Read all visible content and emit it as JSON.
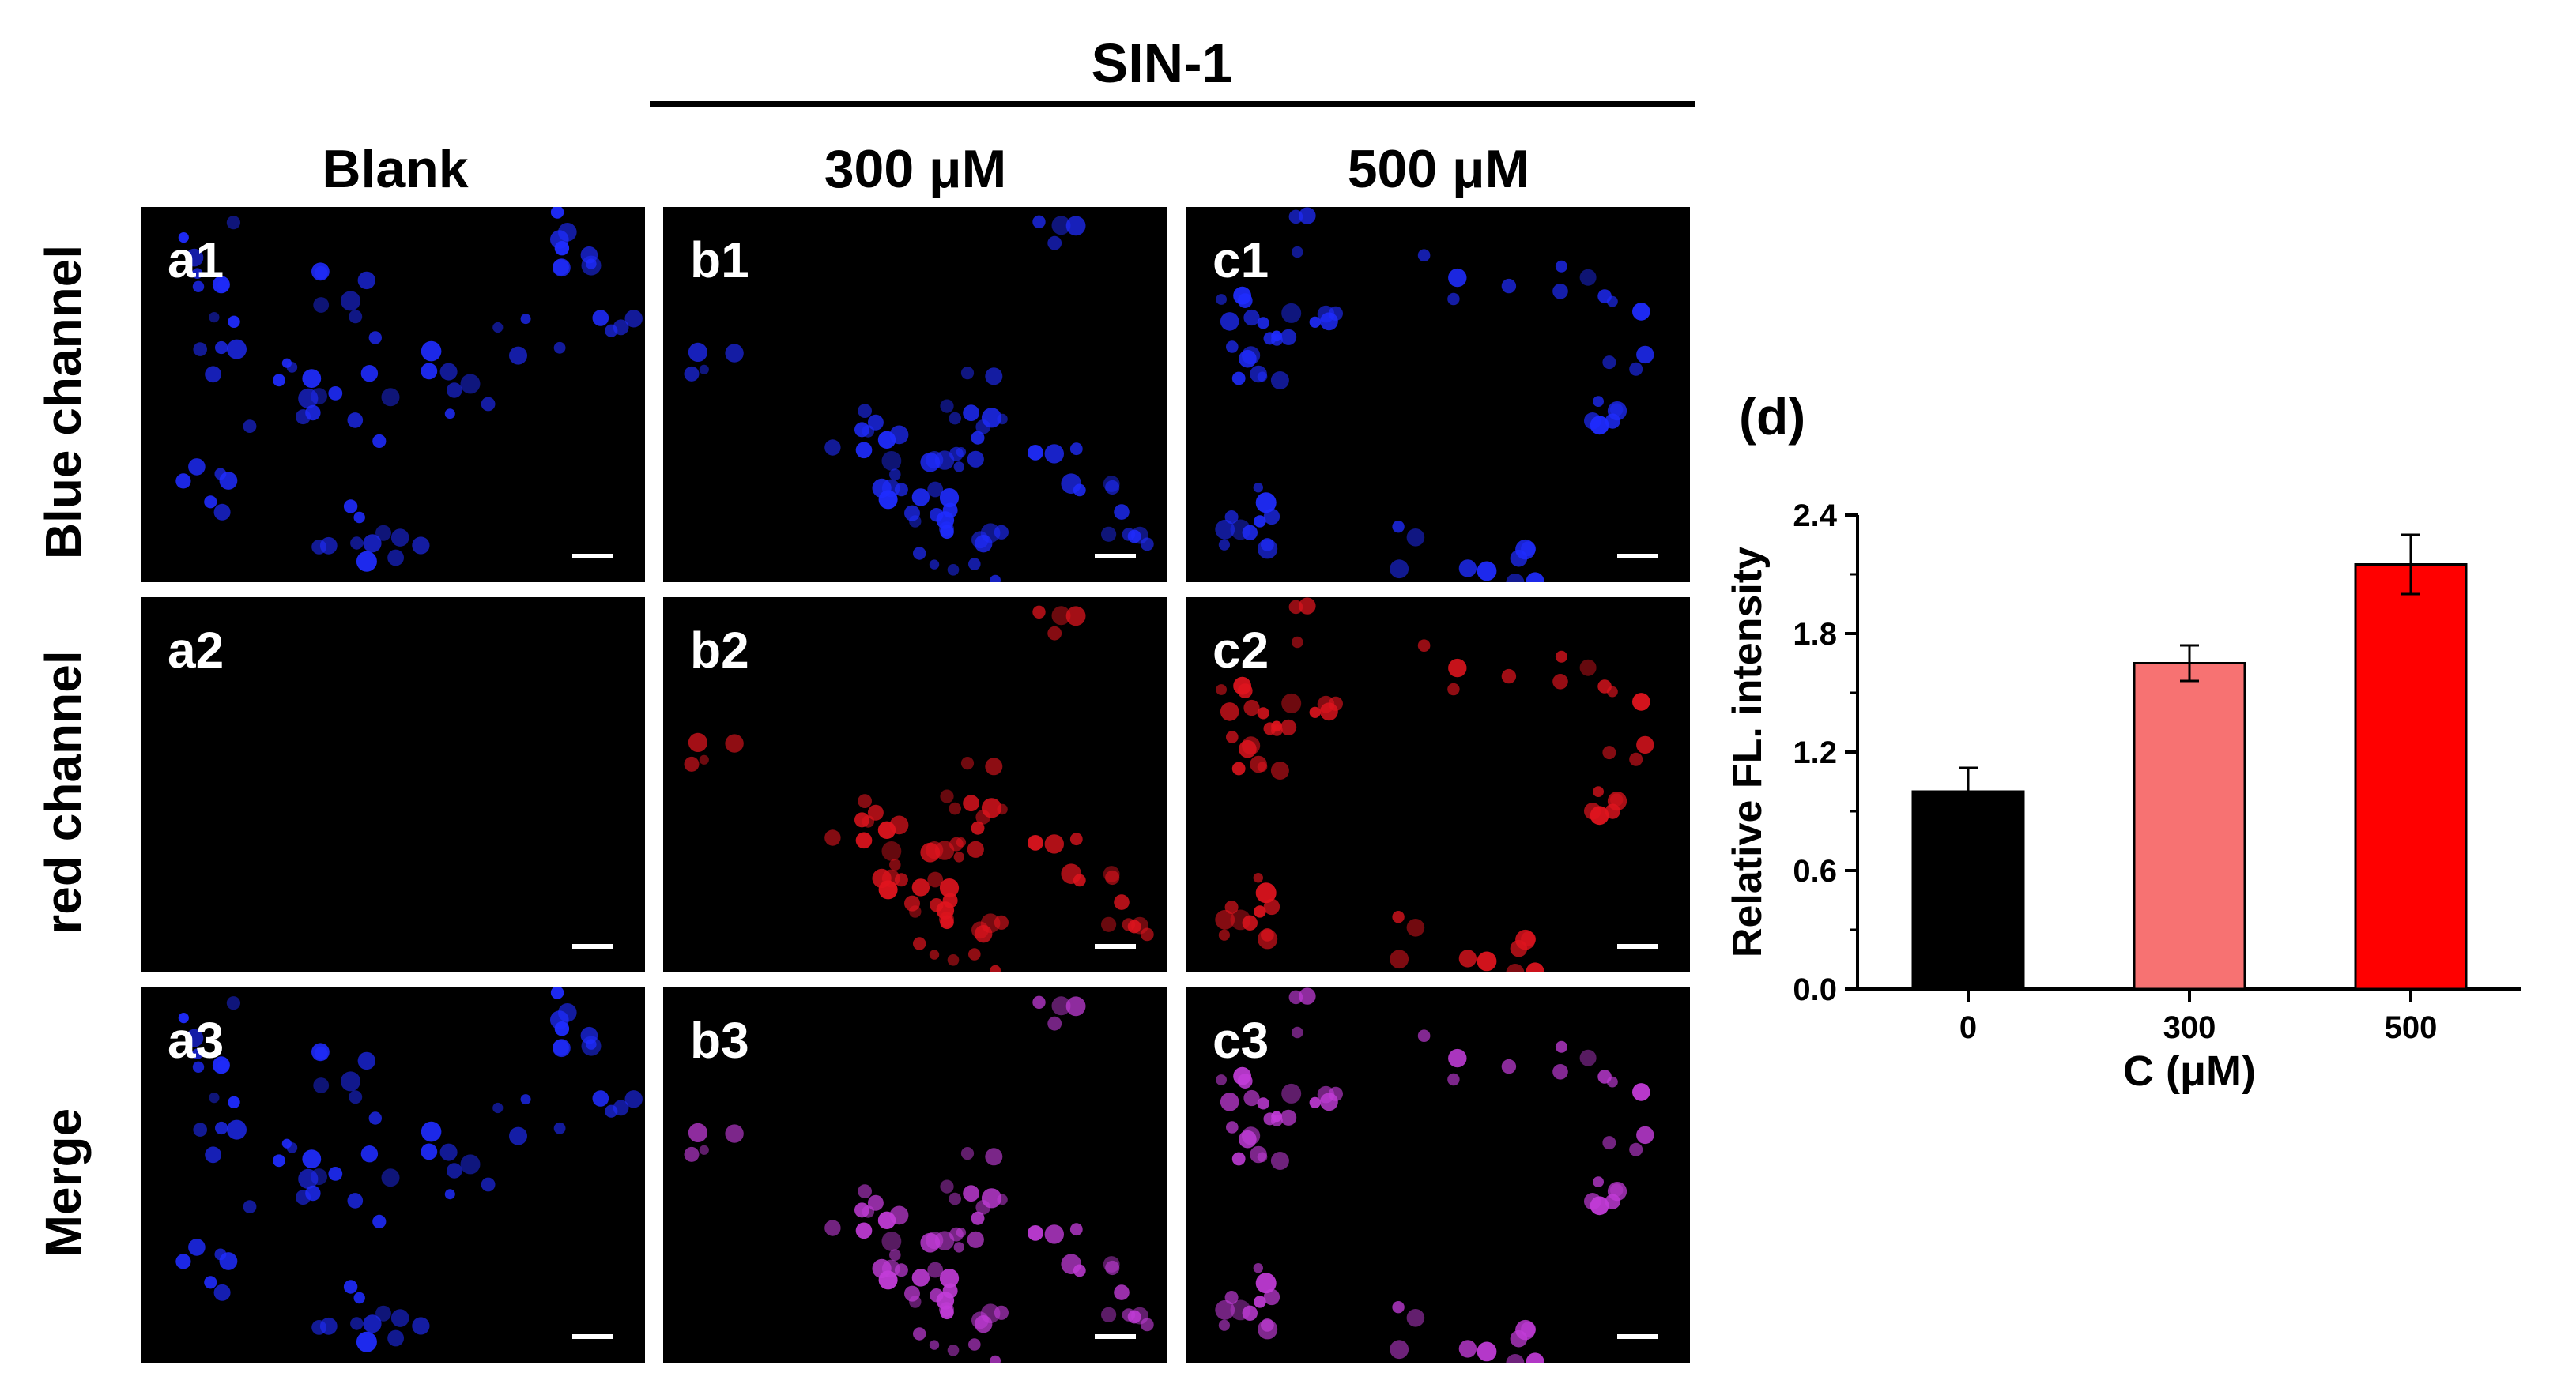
{
  "header": {
    "treatment": "SIN-1",
    "columns": [
      "Blank",
      "300 μM",
      "500 μM"
    ]
  },
  "rows": [
    "Blue channel",
    "red channel",
    "Merge"
  ],
  "panels": {
    "r0": [
      "a1",
      "b1",
      "c1"
    ],
    "r1": [
      "a2",
      "b2",
      "c2"
    ],
    "r2": [
      "a3",
      "b3",
      "c3"
    ]
  },
  "channel_colors": {
    "blue": "#1f2cff",
    "red": "#e0141e",
    "merge": "#c23cd8"
  },
  "chart_data": {
    "type": "bar",
    "panel_label": "(d)",
    "categories": [
      "0",
      "300",
      "500"
    ],
    "values": [
      1.0,
      1.65,
      2.15
    ],
    "errors": [
      0.12,
      0.09,
      0.15
    ],
    "colors": [
      "#000000",
      "#f77272",
      "#ff0000"
    ],
    "xlabel": "C (μM)",
    "ylabel": "Relative FL. intensity",
    "ylim": [
      0,
      2.4
    ],
    "yticks": [
      "0.0",
      "0.6",
      "1.2",
      "1.8",
      "2.4"
    ],
    "grid": false
  }
}
